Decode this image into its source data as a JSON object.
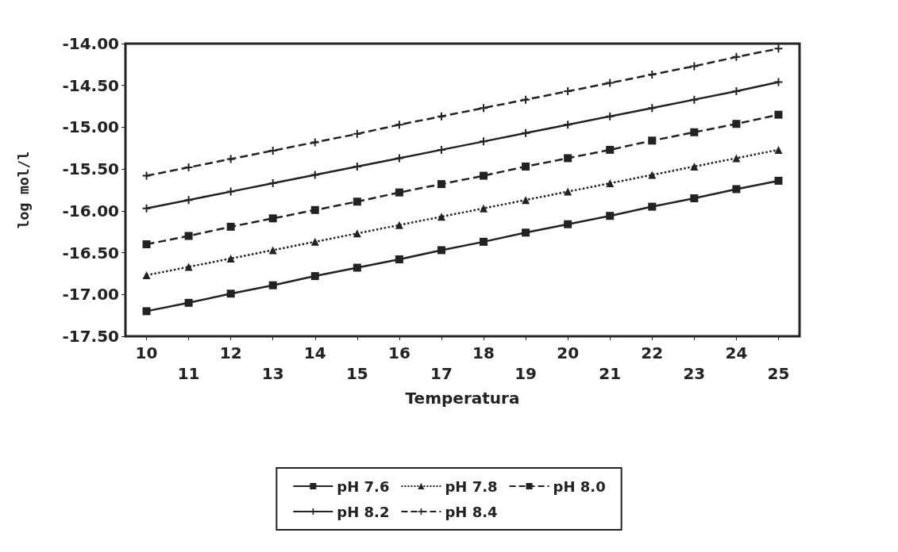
{
  "chart_data": {
    "type": "line",
    "xlabel": "Temperatura",
    "ylabel": "log mol/l",
    "categories": [
      "10",
      "11",
      "12",
      "13",
      "14",
      "15",
      "16",
      "17",
      "18",
      "19",
      "20",
      "21",
      "22",
      "23",
      "24",
      "25"
    ],
    "ylim": [
      -17.5,
      -14
    ],
    "yticks": [
      {
        "value": -17.5,
        "label": "-17.50"
      },
      {
        "value": -17,
        "label": "-17.00"
      },
      {
        "value": -16.5,
        "label": "-16.50"
      },
      {
        "value": -16,
        "label": "-16.00"
      },
      {
        "value": -15.5,
        "label": "-15.50"
      },
      {
        "value": -15,
        "label": "-15.00"
      },
      {
        "value": -14.5,
        "label": "-14.50"
      },
      {
        "value": -14,
        "label": "-14.00"
      }
    ],
    "grid": false,
    "legend": "bottom",
    "series": [
      {
        "name": "pH 7.6",
        "color": "#222222",
        "marker": "square",
        "line_style": "solid",
        "values": [
          -17.2,
          -17.1,
          -16.99,
          -16.89,
          -16.78,
          -16.68,
          -16.58,
          -16.47,
          -16.37,
          -16.26,
          -16.16,
          -16.06,
          -15.95,
          -15.85,
          -15.74,
          -15.64
        ]
      },
      {
        "name": "pH 7.8",
        "color": "#222222",
        "marker": "triangle",
        "line_style": "dotted",
        "values": [
          -16.77,
          -16.67,
          -16.57,
          -16.47,
          -16.37,
          -16.27,
          -16.17,
          -16.07,
          -15.97,
          -15.87,
          -15.77,
          -15.67,
          -15.57,
          -15.47,
          -15.37,
          -15.27
        ]
      },
      {
        "name": "pH 8.0",
        "color": "#222222",
        "marker": "square",
        "line_style": "dashed",
        "values": [
          -16.4,
          -16.3,
          -16.19,
          -16.09,
          -15.99,
          -15.89,
          -15.78,
          -15.68,
          -15.58,
          -15.47,
          -15.37,
          -15.27,
          -15.16,
          -15.06,
          -14.96,
          -14.85
        ]
      },
      {
        "name": "pH 8.2",
        "color": "#222222",
        "marker": "cross",
        "line_style": "solid",
        "values": [
          -15.97,
          -15.87,
          -15.77,
          -15.67,
          -15.57,
          -15.47,
          -15.37,
          -15.27,
          -15.17,
          -15.07,
          -14.97,
          -14.87,
          -14.77,
          -14.67,
          -14.57,
          -14.46
        ]
      },
      {
        "name": "pH 8.4",
        "color": "#222222",
        "marker": "cross",
        "line_style": "dashed",
        "values": [
          -15.58,
          -15.48,
          -15.38,
          -15.28,
          -15.18,
          -15.08,
          -14.97,
          -14.87,
          -14.77,
          -14.67,
          -14.57,
          -14.47,
          -14.37,
          -14.27,
          -14.16,
          -14.06
        ]
      }
    ]
  }
}
